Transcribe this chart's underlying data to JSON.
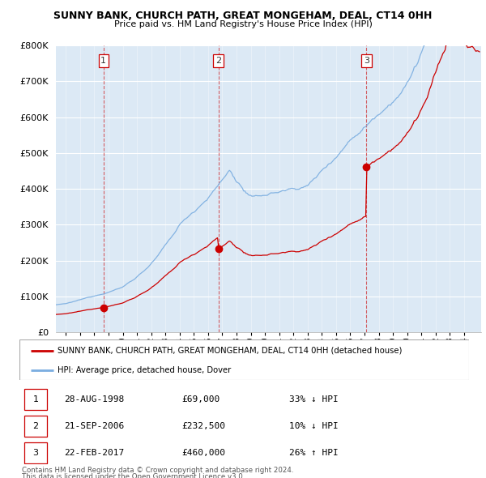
{
  "title": "SUNNY BANK, CHURCH PATH, GREAT MONGEHAM, DEAL, CT14 0HH",
  "subtitle": "Price paid vs. HM Land Registry's House Price Index (HPI)",
  "legend_red": "SUNNY BANK, CHURCH PATH, GREAT MONGEHAM, DEAL, CT14 0HH (detached house)",
  "legend_blue": "HPI: Average price, detached house, Dover",
  "transactions": [
    {
      "num": 1,
      "date": "28-AUG-1998",
      "price": 69000,
      "pct": "33%",
      "dir": "↓",
      "year": 1998.65
    },
    {
      "num": 2,
      "date": "21-SEP-2006",
      "price": 232500,
      "pct": "10%",
      "dir": "↓",
      "year": 2006.72
    },
    {
      "num": 3,
      "date": "22-FEB-2017",
      "price": 460000,
      "pct": "26%",
      "dir": "↑",
      "year": 2017.14
    }
  ],
  "footer1": "Contains HM Land Registry data © Crown copyright and database right 2024.",
  "footer2": "This data is licensed under the Open Government Licence v3.0.",
  "ylim": [
    0,
    800000
  ],
  "yticks": [
    0,
    100000,
    200000,
    300000,
    400000,
    500000,
    600000,
    700000,
    800000
  ],
  "red_color": "#cc0000",
  "blue_color": "#7aade0",
  "vline_color": "#cc0000",
  "background_color": "#ffffff",
  "plot_bg_color": "#dce9f5",
  "grid_color": "#ffffff"
}
